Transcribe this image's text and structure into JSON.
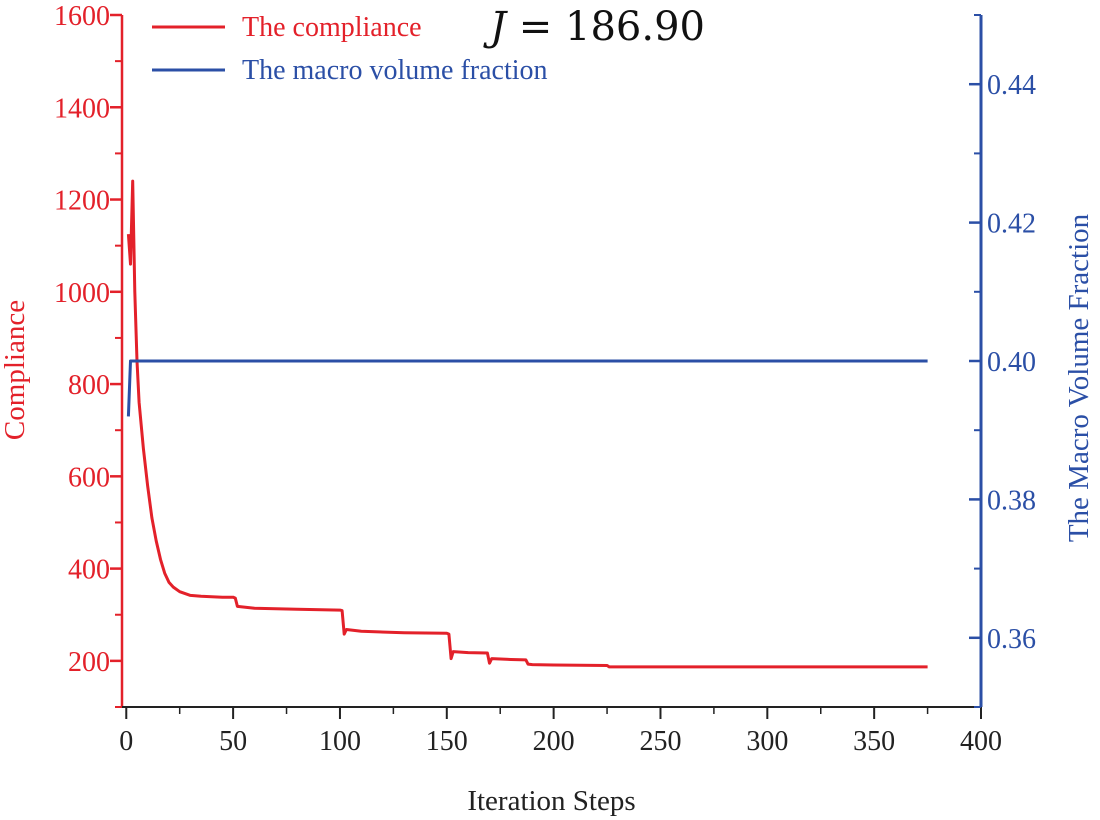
{
  "colors": {
    "compliance": "#e3212a",
    "volume": "#2b4fa6",
    "axis": "#222222"
  },
  "chart_data": {
    "type": "line",
    "xlabel": "Iteration Steps",
    "ylabel_left": "Compliance",
    "ylabel_right": "The Macro Volume Fraction",
    "annotation": {
      "prefix": "J",
      "equals": "=",
      "value": "186.90"
    },
    "x_axis": {
      "range": [
        -2,
        400
      ],
      "ticks": [
        0,
        50,
        100,
        150,
        200,
        250,
        300,
        350,
        400
      ],
      "tick_labels": [
        "0",
        "50",
        "100",
        "150",
        "200",
        "250",
        "300",
        "350",
        "400"
      ]
    },
    "y_left": {
      "range": [
        100,
        1600
      ],
      "ticks": [
        200,
        400,
        600,
        800,
        1000,
        1200,
        1400,
        1600
      ],
      "tick_labels": [
        "200",
        "400",
        "600",
        "800",
        "1000",
        "1200",
        "1400",
        "1600"
      ]
    },
    "y_right": {
      "range": [
        0.35,
        0.45
      ],
      "ticks": [
        0.36,
        0.38,
        0.4,
        0.42,
        0.44
      ],
      "tick_labels": [
        "0.36",
        "0.38",
        "0.40",
        "0.42",
        "0.44"
      ]
    },
    "legend": [
      {
        "name": "The compliance"
      },
      {
        "name": "The macro volume fraction"
      }
    ],
    "series": [
      {
        "name": "The compliance",
        "axis": "left",
        "points": [
          [
            1,
            1125
          ],
          [
            2,
            1060
          ],
          [
            3,
            1240
          ],
          [
            4,
            1000
          ],
          [
            5,
            850
          ],
          [
            6,
            760
          ],
          [
            8,
            660
          ],
          [
            10,
            580
          ],
          [
            12,
            510
          ],
          [
            14,
            460
          ],
          [
            16,
            420
          ],
          [
            18,
            390
          ],
          [
            20,
            370
          ],
          [
            22,
            360
          ],
          [
            25,
            350
          ],
          [
            30,
            342
          ],
          [
            35,
            340
          ],
          [
            40,
            339
          ],
          [
            45,
            338
          ],
          [
            50,
            338
          ],
          [
            51,
            336
          ],
          [
            52,
            318
          ],
          [
            60,
            314
          ],
          [
            80,
            312
          ],
          [
            100,
            310
          ],
          [
            101,
            309
          ],
          [
            102,
            258
          ],
          [
            103,
            268
          ],
          [
            110,
            264
          ],
          [
            130,
            261
          ],
          [
            150,
            260
          ],
          [
            151,
            258
          ],
          [
            152,
            205
          ],
          [
            153,
            220
          ],
          [
            160,
            218
          ],
          [
            169,
            217
          ],
          [
            170,
            195
          ],
          [
            171,
            205
          ],
          [
            180,
            203
          ],
          [
            187,
            202
          ],
          [
            188,
            193
          ],
          [
            190,
            192
          ],
          [
            200,
            191
          ],
          [
            225,
            190
          ],
          [
            226,
            187
          ],
          [
            250,
            187
          ],
          [
            300,
            187
          ],
          [
            350,
            187
          ],
          [
            375,
            187
          ]
        ]
      },
      {
        "name": "The macro volume fraction",
        "axis": "right",
        "points": [
          [
            1,
            0.392
          ],
          [
            2,
            0.4
          ],
          [
            3,
            0.4
          ],
          [
            50,
            0.4
          ],
          [
            100,
            0.4
          ],
          [
            200,
            0.4
          ],
          [
            300,
            0.4
          ],
          [
            375,
            0.4
          ]
        ]
      }
    ]
  }
}
